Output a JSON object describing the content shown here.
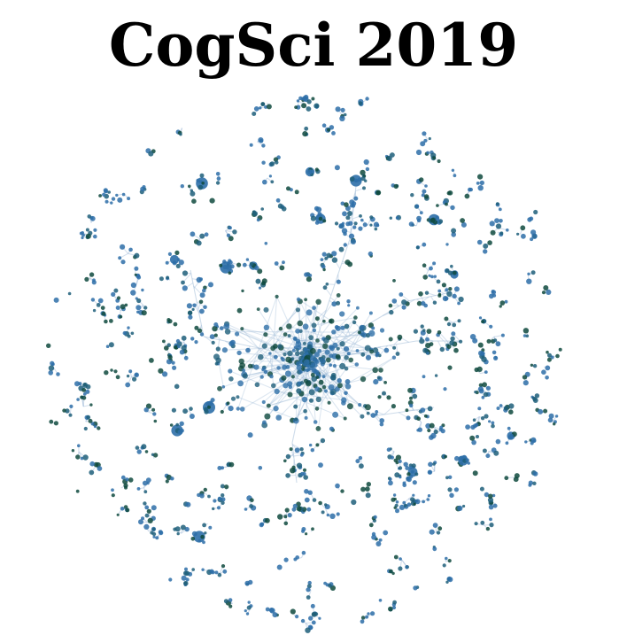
{
  "title": "CogSci 2019",
  "colors": {
    "node_primary": "#2e6fa8",
    "node_secondary": "#1f5f7a",
    "node_dark": "#0f4a3e",
    "edge": "#9db9d6",
    "background": "#ffffff"
  }
}
